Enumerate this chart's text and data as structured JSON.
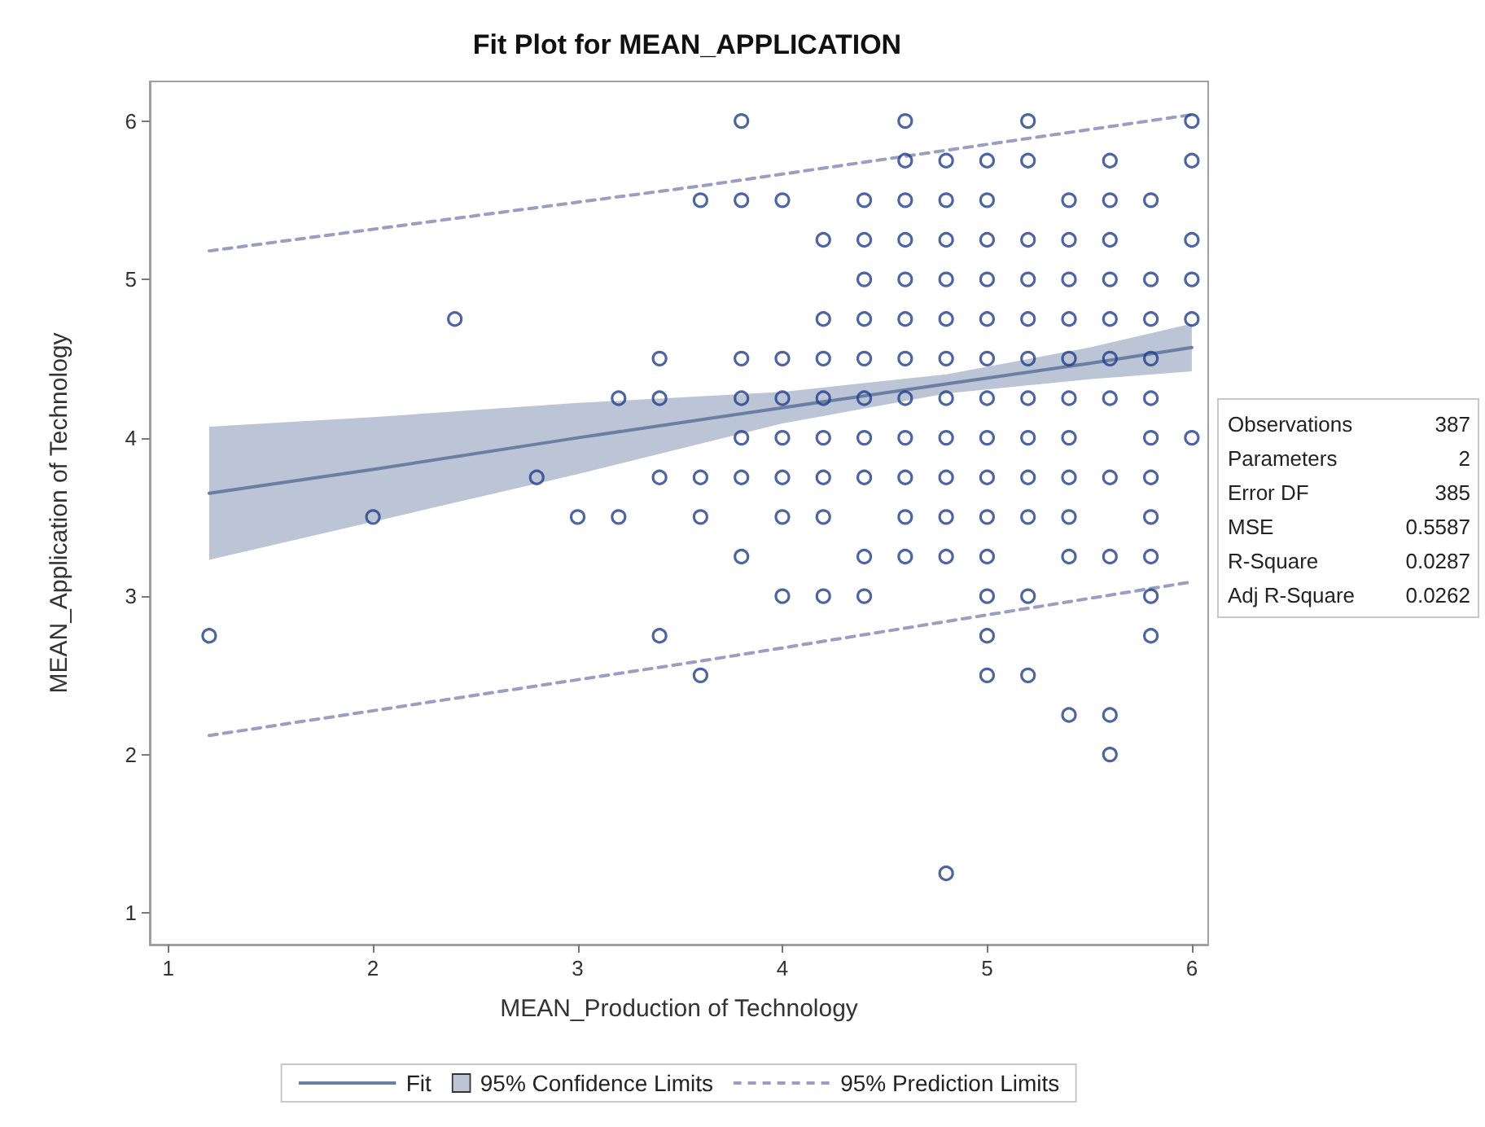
{
  "chart_data": {
    "type": "scatter",
    "title": "Fit Plot for MEAN_APPLICATION",
    "xlabel": "MEAN_Production of Technology",
    "ylabel": "MEAN_Application of Technology",
    "xlim": [
      0.91,
      6.08
    ],
    "xticks": [
      1,
      2,
      3,
      4,
      5,
      6
    ],
    "ylim": [
      0.8,
      6.25
    ],
    "yticks": [
      1,
      2,
      3,
      4,
      5,
      6
    ],
    "grid": false,
    "legend": "bottom",
    "marker": "circle",
    "annotations": [
      {
        "text": "95% Confidence Limits"
      },
      "Observations 387",
      "Parameters 2",
      "Error DF 385",
      "MSE 0.5587",
      "R-Square 0.0287",
      "Adj R-Square 0.0262"
    ],
    "series": [
      {
        "type": "line",
        "name": "Fit",
        "color": "#6b7fa3",
        "marker": "none",
        "line_style": "solid",
        "x": [
          1.2,
          2,
          3,
          4,
          4.8,
          5.5,
          6
        ],
        "values": [
          3.65,
          3.8,
          4.0,
          4.19,
          4.34,
          4.47,
          4.57
        ],
        "lower": [
          3.23,
          3.47,
          3.77,
          4.09,
          4.28,
          4.37,
          4.42
        ],
        "upper": [
          4.07,
          4.13,
          4.22,
          4.29,
          4.4,
          4.57,
          4.72
        ]
      },
      {
        "type": "line",
        "name": "95% Prediction Limits",
        "color": "#9a9ec2",
        "marker": "none",
        "line_style": "dashed",
        "x": [
          1.2,
          3.6,
          6
        ],
        "values": [
          5.18,
          5.59,
          6.04
        ]
      },
      {
        "type": "line",
        "color": "#9a9ec2",
        "marker": "none",
        "line_style": "dashed",
        "x": [
          1.2,
          3.6,
          6
        ],
        "values": [
          2.12,
          2.59,
          3.09
        ]
      },
      {
        "color": "#1f3d8c",
        "x": [
          1.2,
          2.0,
          2.4,
          2.8,
          3.0,
          3.2,
          3.2,
          3.4,
          3.4,
          3.4,
          3.4,
          3.6,
          3.6,
          3.6,
          3.6,
          3.8,
          3.8,
          3.8,
          3.8,
          3.8,
          3.8,
          3.8,
          4.0,
          4.0,
          4.0,
          4.0,
          4.0,
          4.0,
          4.0,
          4.2,
          4.2,
          4.2,
          4.2,
          4.2,
          4.2,
          4.2,
          4.2,
          4.4,
          4.4,
          4.4,
          4.4,
          4.4,
          4.4,
          4.4,
          4.4,
          4.4,
          4.4,
          4.6,
          4.6,
          4.6,
          4.6,
          4.6,
          4.6,
          4.6,
          4.6,
          4.6,
          4.6,
          4.6,
          4.6,
          4.8,
          4.8,
          4.8,
          4.8,
          4.8,
          4.8,
          4.8,
          4.8,
          4.8,
          4.8,
          4.8,
          4.8,
          5.0,
          5.0,
          5.0,
          5.0,
          5.0,
          5.0,
          5.0,
          5.0,
          5.0,
          5.0,
          5.0,
          5.0,
          5.0,
          5.0,
          5.2,
          5.2,
          5.2,
          5.2,
          5.2,
          5.2,
          5.2,
          5.2,
          5.2,
          5.2,
          5.2,
          5.2,
          5.4,
          5.4,
          5.4,
          5.4,
          5.4,
          5.4,
          5.4,
          5.4,
          5.4,
          5.4,
          5.4,
          5.6,
          5.6,
          5.6,
          5.6,
          5.6,
          5.6,
          5.6,
          5.6,
          5.6,
          5.6,
          5.6,
          5.8,
          5.8,
          5.8,
          5.8,
          5.8,
          5.8,
          5.8,
          5.8,
          5.8,
          5.8,
          5.8,
          6.0,
          6.0,
          6.0,
          6.0,
          6.0,
          6.0
        ],
        "values": [
          2.75,
          3.5,
          4.75,
          3.75,
          3.5,
          4.25,
          3.5,
          4.5,
          4.25,
          3.75,
          2.75,
          5.5,
          3.75,
          3.5,
          2.5,
          6,
          5.5,
          4.5,
          4.25,
          4.0,
          3.75,
          3.25,
          5.5,
          4.5,
          4.25,
          4.0,
          3.75,
          3.5,
          3.0,
          5.25,
          4.75,
          4.5,
          4.25,
          4.0,
          3.75,
          3.5,
          3.0,
          5.5,
          5.25,
          5.0,
          4.75,
          4.5,
          4.25,
          4.0,
          3.75,
          3.25,
          3.0,
          6,
          5.75,
          5.5,
          5.25,
          5.0,
          4.75,
          4.5,
          4.25,
          4.0,
          3.75,
          3.5,
          3.25,
          5.75,
          5.5,
          5.25,
          5.0,
          4.75,
          4.5,
          4.25,
          4.0,
          3.75,
          3.5,
          3.25,
          1.25,
          5.75,
          5.5,
          5.25,
          5.0,
          4.75,
          4.5,
          4.25,
          4.0,
          3.75,
          3.5,
          3.25,
          3.0,
          2.75,
          2.5,
          6,
          5.75,
          5.25,
          5.0,
          4.75,
          4.5,
          4.25,
          4.0,
          3.75,
          3.5,
          3.0,
          2.5,
          5.5,
          5.25,
          5.0,
          4.75,
          4.5,
          4.25,
          4.0,
          3.75,
          3.5,
          3.25,
          2.25,
          5.75,
          5.5,
          5.25,
          5.0,
          4.75,
          4.5,
          4.25,
          3.75,
          3.25,
          2.25,
          2.0,
          5.5,
          5.0,
          4.75,
          4.5,
          4.25,
          4.0,
          3.75,
          3.5,
          3.25,
          3.0,
          2.75,
          6,
          5.75,
          5.25,
          5.0,
          4.75,
          4.0
        ]
      }
    ]
  }
}
